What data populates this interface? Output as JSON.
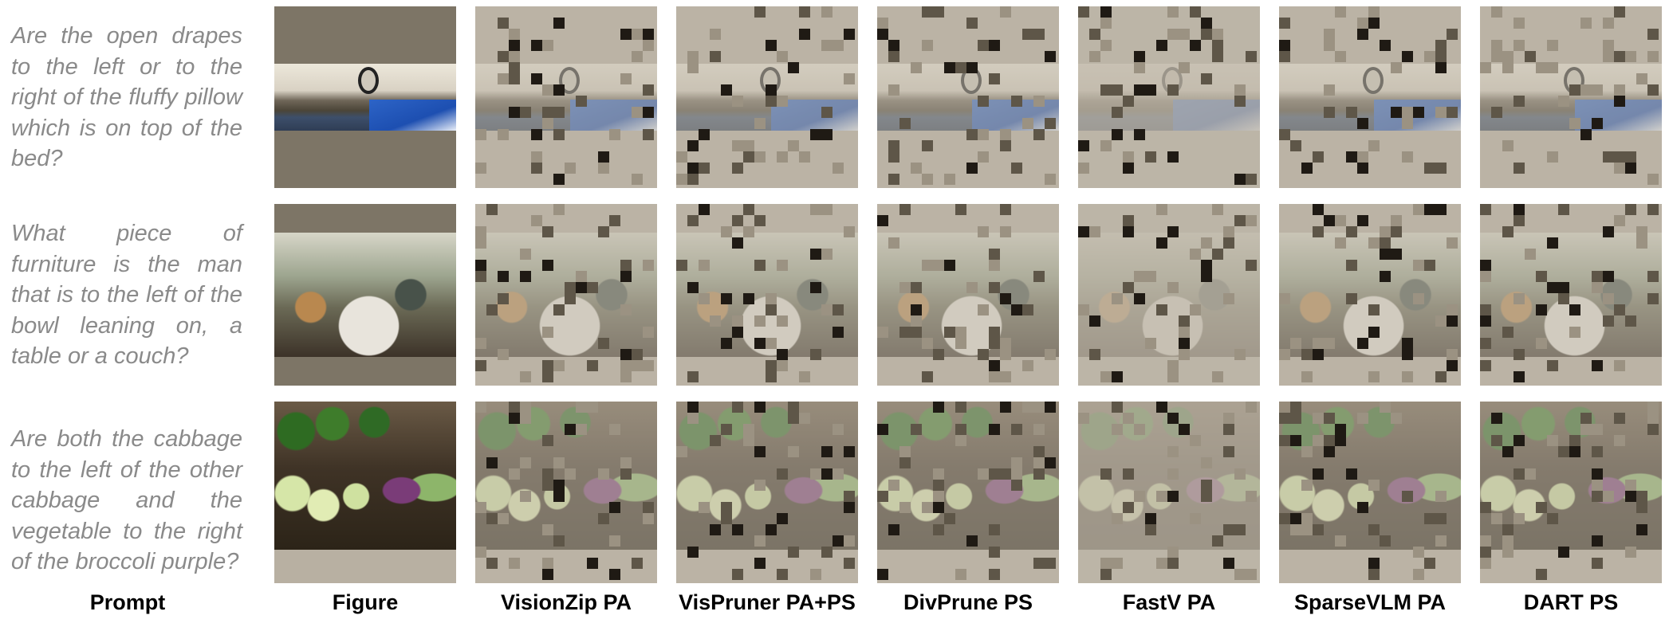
{
  "prompts": [
    "Are the open drapes to the left or to the right of the fluffy pillow which is on top of the bed?",
    "What piece of furniture is the man that is to the left of the bowl leaning on, a table or a couch?",
    "Are both the cabbage to the left of the other cabbage and the vegetable to the right of the broccoli purple?"
  ],
  "columns": {
    "prompt": "Prompt",
    "figure": "Figure",
    "methods": [
      "VisionZip PA",
      "VisPruner PA+PS",
      "DivPrune PS",
      "FastV PA",
      "SparseVLM PA",
      "DART PS"
    ]
  },
  "colors": {
    "pad": "#7d7566",
    "pruned_tile": "#b8b0a2",
    "prompt_text": "#8a8a8a"
  }
}
